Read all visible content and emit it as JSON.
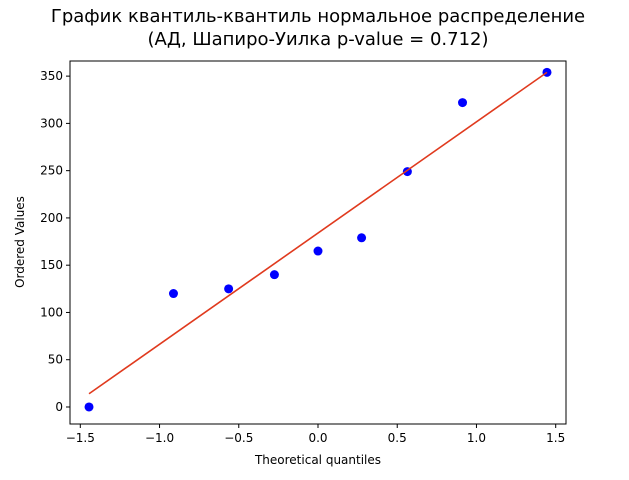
{
  "chart_data": {
    "type": "scatter",
    "title": [
      "График квантиль-квантиль нормальное распределение",
      "(АД, Шапиро-Уилка p-value = 0.712)"
    ],
    "xlabel": "Theoretical quantiles",
    "ylabel": "Ordered Values",
    "series": [
      {
        "type": "scatter",
        "color": "#0000ff",
        "x": [
          -1.445,
          -0.912,
          -0.564,
          -0.275,
          0,
          0.275,
          0.564,
          0.912,
          1.445
        ],
        "values": [
          0,
          120,
          125,
          140,
          165,
          179,
          249,
          322,
          354
        ]
      },
      {
        "type": "line",
        "color": "#e03a1e",
        "x": [
          -1.445,
          1.445
        ],
        "values": [
          14,
          354
        ]
      }
    ],
    "xlim": [
      -1.565,
      1.565
    ],
    "xticks": [
      {
        "value": -1.5,
        "label": "−1.5"
      },
      {
        "value": -1.0,
        "label": "−1.0"
      },
      {
        "value": -0.5,
        "label": "−0.5"
      },
      {
        "value": 0,
        "label": "0.0"
      },
      0.5,
      {
        "value": 1.0,
        "label": "1.0"
      },
      1.5
    ],
    "ylim": [
      -18,
      366
    ],
    "yticks": [
      0,
      50,
      100,
      150,
      200,
      250,
      300,
      350
    ]
  }
}
